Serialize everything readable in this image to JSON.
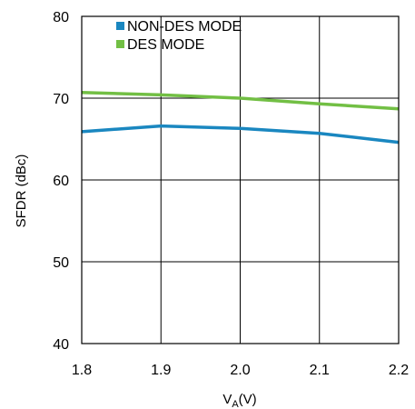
{
  "chart_data": {
    "type": "line",
    "xlabel": "VA(V)",
    "xlabel_main": "V",
    "xlabel_sub": "A",
    "xlabel_suffix": "(V)",
    "ylabel": "SFDR (dBc)",
    "x": [
      1.8,
      1.9,
      2.0,
      2.1,
      2.2
    ],
    "xticks": [
      "1.8",
      "1.9",
      "2.0",
      "2.1",
      "2.2"
    ],
    "yticks": [
      "40",
      "50",
      "60",
      "70",
      "80"
    ],
    "xlim": [
      1.8,
      2.2
    ],
    "ylim": [
      40,
      80
    ],
    "grid": true,
    "legend_position": "top-left",
    "series": [
      {
        "name": "NON-DES MODE",
        "color": "#1a87c0",
        "values": [
          65.9,
          66.6,
          66.3,
          65.7,
          64.6
        ]
      },
      {
        "name": "DES MODE",
        "color": "#72bf44",
        "values": [
          70.7,
          70.4,
          70.0,
          69.3,
          68.7
        ]
      }
    ]
  }
}
